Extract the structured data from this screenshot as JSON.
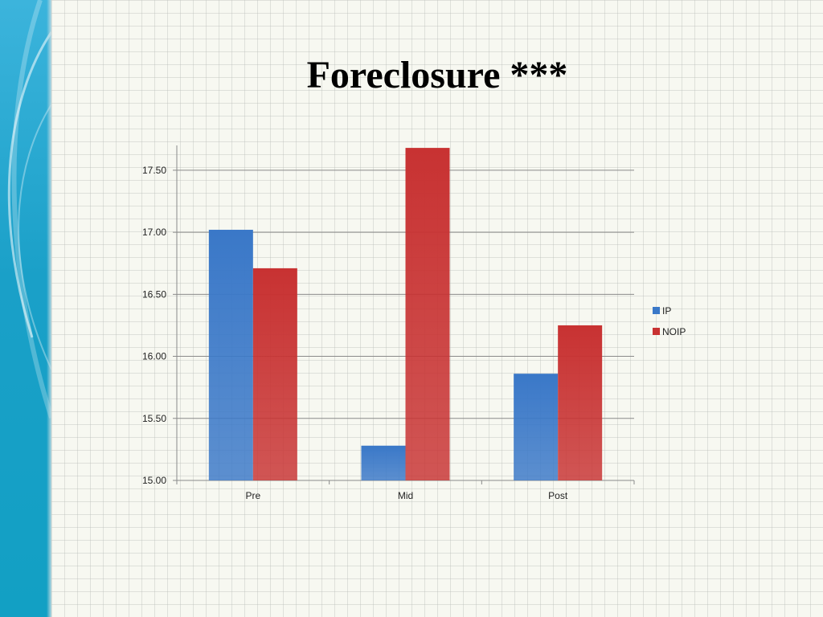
{
  "slide": {
    "title": "Foreclosure ***"
  },
  "colors": {
    "band": "#1aa0c8",
    "grid": "#8a8a8a"
  },
  "chart_data": {
    "type": "bar",
    "categories": [
      "Pre",
      "Mid",
      "Post"
    ],
    "series": [
      {
        "name": "IP",
        "values": [
          17.02,
          15.28,
          15.86
        ],
        "color": "#3a78c8"
      },
      {
        "name": "NOIP",
        "values": [
          16.71,
          17.68,
          16.25
        ],
        "color": "#c83232"
      }
    ],
    "ylim": [
      15.0,
      17.7
    ],
    "yticks": [
      15.0,
      15.5,
      16.0,
      16.5,
      17.0,
      17.5
    ],
    "ytick_labels": [
      "15.00",
      "15.50",
      "16.00",
      "16.50",
      "17.00",
      "17.50"
    ],
    "grid": true,
    "legend": "right"
  }
}
